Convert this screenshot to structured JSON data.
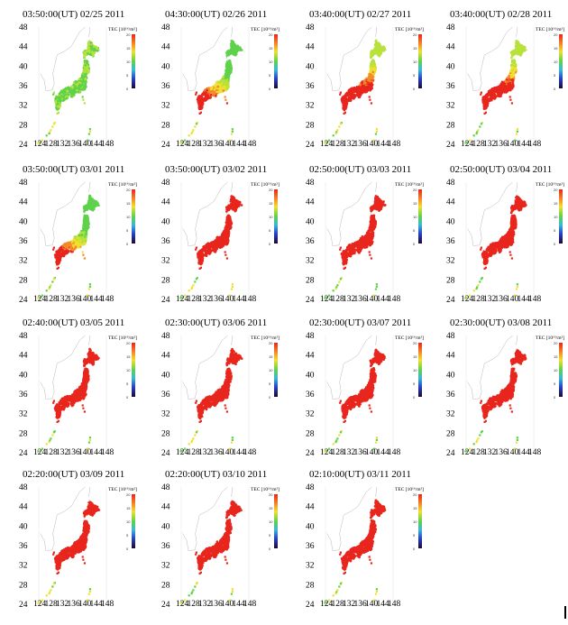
{
  "figure": {
    "colorbar": {
      "label": "TEC [10¹⁶/m²]",
      "ticks": [
        "20",
        "15",
        "10",
        "5",
        "0"
      ]
    },
    "lat_ticks": [
      "48",
      "44",
      "40",
      "36",
      "32",
      "28",
      "24"
    ],
    "lon_ticks": [
      "124",
      "128",
      "132",
      "136",
      "140",
      "144",
      "148"
    ],
    "panels": [
      {
        "time": "03:50:00(UT)",
        "date": "02/25 2011",
        "pattern": "green"
      },
      {
        "time": "04:30:00(UT)",
        "date": "02/26 2011",
        "pattern": "partial"
      },
      {
        "time": "03:40:00(UT)",
        "date": "02/27 2011",
        "pattern": "north-yellow"
      },
      {
        "time": "03:40:00(UT)",
        "date": "02/28 2011",
        "pattern": "north-yellow"
      },
      {
        "time": "03:50:00(UT)",
        "date": "03/01 2011",
        "pattern": "partial"
      },
      {
        "time": "03:50:00(UT)",
        "date": "03/02 2011",
        "pattern": "red"
      },
      {
        "time": "02:50:00(UT)",
        "date": "03/03 2011",
        "pattern": "red"
      },
      {
        "time": "02:50:00(UT)",
        "date": "03/04 2011",
        "pattern": "red"
      },
      {
        "time": "02:40:00(UT)",
        "date": "03/05 2011",
        "pattern": "red"
      },
      {
        "time": "02:30:00(UT)",
        "date": "03/06 2011",
        "pattern": "red"
      },
      {
        "time": "02:30:00(UT)",
        "date": "03/07 2011",
        "pattern": "red"
      },
      {
        "time": "02:30:00(UT)",
        "date": "03/08 2011",
        "pattern": "red"
      },
      {
        "time": "02:20:00(UT)",
        "date": "03/09 2011",
        "pattern": "red"
      },
      {
        "time": "02:20:00(UT)",
        "date": "03/10 2011",
        "pattern": "red"
      },
      {
        "time": "02:10:00(UT)",
        "date": "03/11 2011",
        "pattern": "red"
      }
    ]
  },
  "colors": {
    "green": "#5ed24a",
    "yellow_green": "#b8e23a",
    "yellow": "#f0e030",
    "orange": "#f58a28",
    "red": "#e8261e",
    "outline": "#b0b0b0"
  }
}
